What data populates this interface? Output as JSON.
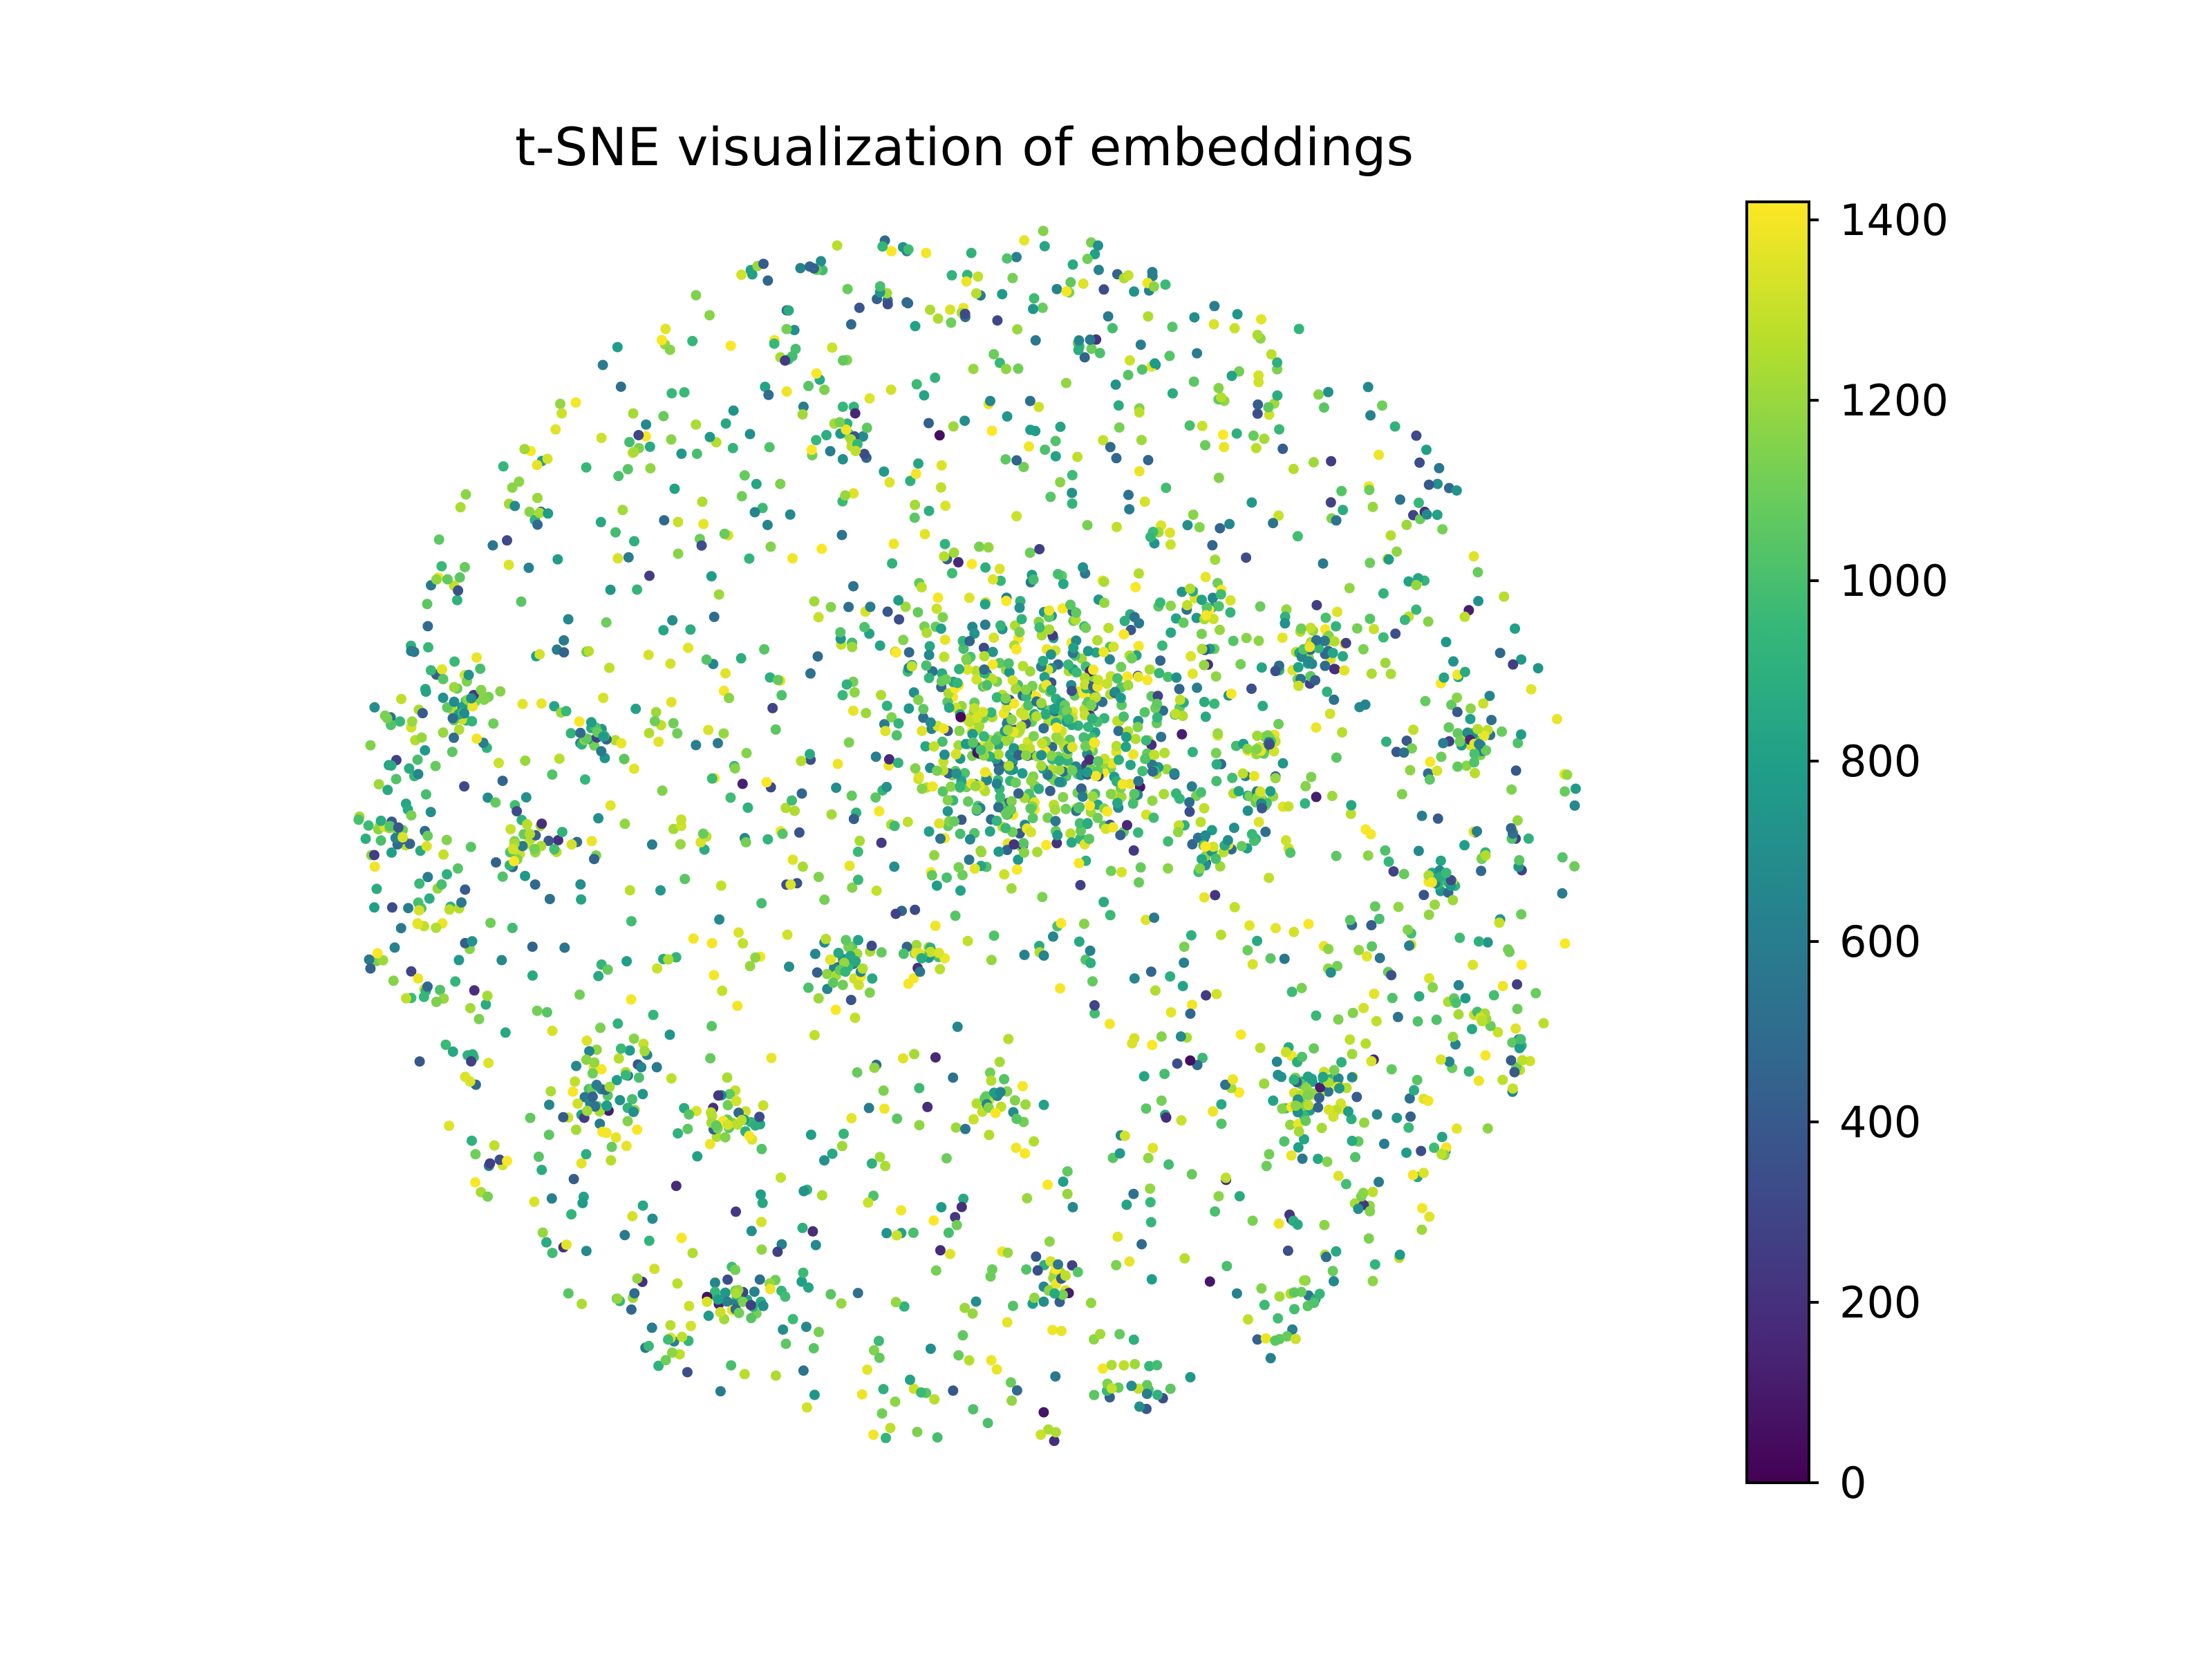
{
  "chart_data": {
    "type": "scatter",
    "title": "t-SNE visualization of embeddings",
    "xlabel": "",
    "ylabel": "",
    "axes_visible": false,
    "grid": false,
    "colormap": "viridis",
    "colormap_stops": [
      "#440154",
      "#482878",
      "#3e4989",
      "#31688e",
      "#26828e",
      "#1f9e89",
      "#35b779",
      "#6ece58",
      "#b5de2b",
      "#fde725"
    ],
    "color_range": [
      0,
      1420
    ],
    "colorbar": {
      "position": "right",
      "ticks": [
        0,
        200,
        400,
        600,
        800,
        1000,
        1200,
        1400
      ],
      "tick_labels": [
        "0",
        "200",
        "400",
        "600",
        "800",
        "1000",
        "1200",
        "1400"
      ]
    },
    "point_count_estimate": 2600,
    "point_marker": "small filled circle",
    "distribution_note": "roughly circular cloud with dense core near upper-center and several smaller satellite clusters"
  }
}
